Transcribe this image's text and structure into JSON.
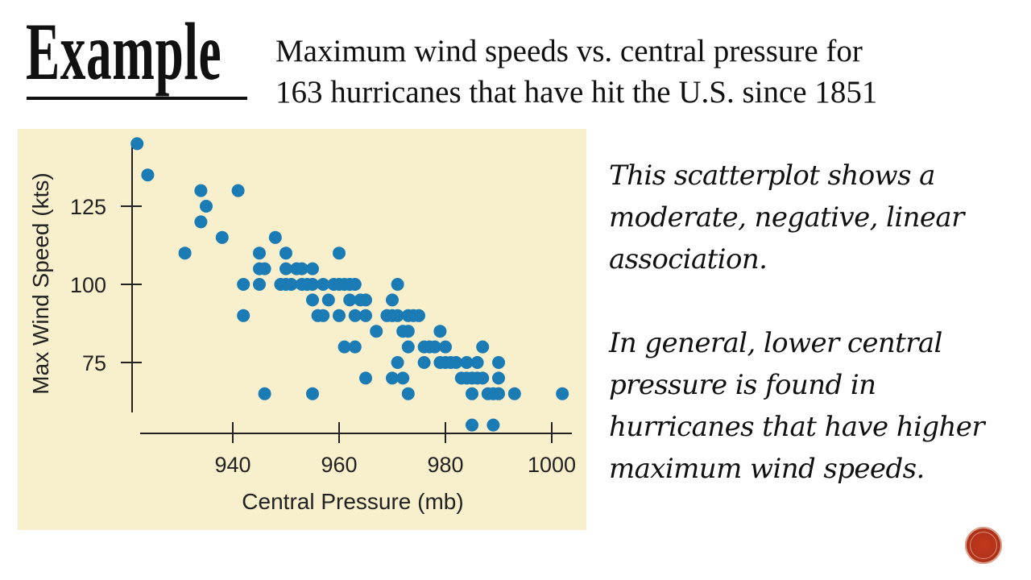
{
  "slide": {
    "heading": "Example",
    "subtitle_lines": [
      "Maximum wind speeds vs. central pressure for",
      "163 hurricanes that have hit the U.S. since 1851"
    ],
    "description_paragraphs": [
      "This scatterplot shows a moderate, negative, linear association.",
      "In general, lower central pressure is found in hurricanes that have higher maximum wind speeds."
    ],
    "nav_button_icon": "circle-nav-icon"
  },
  "chart_data": {
    "type": "scatter",
    "title": "",
    "xlabel": "Central Pressure (mb)",
    "ylabel": "Max Wind Speed (kts)",
    "xlim": [
      920,
      1005
    ],
    "ylim": [
      52,
      147
    ],
    "xticks": [
      940,
      960,
      980,
      1000
    ],
    "yticks": [
      75,
      100,
      125
    ],
    "grid": false,
    "point_color": "#1b7bb5",
    "panel_color": "#f8efcd",
    "points": [
      [
        922,
        145
      ],
      [
        924,
        135
      ],
      [
        931,
        110
      ],
      [
        934,
        130
      ],
      [
        934,
        120
      ],
      [
        935,
        125
      ],
      [
        938,
        115
      ],
      [
        941,
        130
      ],
      [
        942,
        100
      ],
      [
        942,
        90
      ],
      [
        945,
        110
      ],
      [
        945,
        105
      ],
      [
        945,
        100
      ],
      [
        946,
        105
      ],
      [
        946,
        65
      ],
      [
        948,
        115
      ],
      [
        949,
        100
      ],
      [
        950,
        110
      ],
      [
        950,
        105
      ],
      [
        950,
        100
      ],
      [
        951,
        100
      ],
      [
        952,
        105
      ],
      [
        953,
        105
      ],
      [
        953,
        100
      ],
      [
        954,
        100
      ],
      [
        955,
        105
      ],
      [
        955,
        100
      ],
      [
        955,
        95
      ],
      [
        955,
        65
      ],
      [
        956,
        90
      ],
      [
        957,
        100
      ],
      [
        957,
        90
      ],
      [
        958,
        95
      ],
      [
        959,
        100
      ],
      [
        960,
        110
      ],
      [
        960,
        100
      ],
      [
        960,
        90
      ],
      [
        961,
        100
      ],
      [
        962,
        100
      ],
      [
        961,
        80
      ],
      [
        962,
        95
      ],
      [
        963,
        100
      ],
      [
        963,
        90
      ],
      [
        963,
        80
      ],
      [
        964,
        95
      ],
      [
        965,
        95
      ],
      [
        965,
        90
      ],
      [
        965,
        70
      ],
      [
        967,
        85
      ],
      [
        969,
        90
      ],
      [
        970,
        95
      ],
      [
        970,
        90
      ],
      [
        970,
        70
      ],
      [
        971,
        100
      ],
      [
        971,
        90
      ],
      [
        971,
        75
      ],
      [
        972,
        85
      ],
      [
        972,
        70
      ],
      [
        973,
        90
      ],
      [
        973,
        85
      ],
      [
        973,
        80
      ],
      [
        973,
        65
      ],
      [
        974,
        90
      ],
      [
        975,
        90
      ],
      [
        976,
        80
      ],
      [
        976,
        75
      ],
      [
        977,
        80
      ],
      [
        978,
        80
      ],
      [
        979,
        85
      ],
      [
        979,
        75
      ],
      [
        980,
        80
      ],
      [
        980,
        75
      ],
      [
        981,
        75
      ],
      [
        982,
        75
      ],
      [
        983,
        70
      ],
      [
        984,
        75
      ],
      [
        984,
        70
      ],
      [
        985,
        70
      ],
      [
        985,
        65
      ],
      [
        985,
        55
      ],
      [
        986,
        70
      ],
      [
        986,
        75
      ],
      [
        987,
        80
      ],
      [
        987,
        70
      ],
      [
        988,
        65
      ],
      [
        989,
        65
      ],
      [
        989,
        55
      ],
      [
        990,
        75
      ],
      [
        990,
        70
      ],
      [
        990,
        65
      ],
      [
        993,
        65
      ],
      [
        1002,
        65
      ]
    ]
  }
}
